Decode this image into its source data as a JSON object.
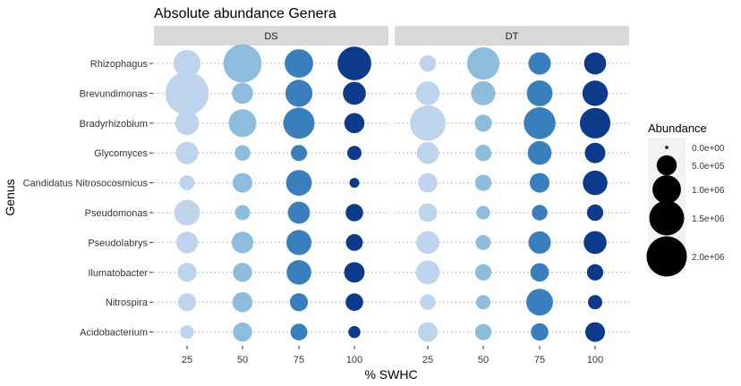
{
  "chart_data": {
    "type": "scatter",
    "title": "Absolute abundance Genera",
    "xlabel": "% SWHC",
    "ylabel": "Genus",
    "x_ticks": [
      25,
      50,
      75,
      100
    ],
    "facets": [
      "DS",
      "DT"
    ],
    "genera": [
      "Rhizophagus",
      "Brevundimonas",
      "Bradyrhizobium",
      "Glycomyces",
      "Candidatus Nitrosocosmicus",
      "Pseudomonas",
      "Pseudolabrys",
      "Ilumatobacter",
      "Nitrospira",
      "Acidobacterium"
    ],
    "grid": "dotted horizontal",
    "legend": {
      "title": "Abundance",
      "position": "right",
      "entries": [
        "0.0e+00",
        "5.0e+05",
        "1.0e+06",
        "1.5e+06",
        "2.0e+06"
      ],
      "values": [
        0,
        500000,
        1000000,
        1500000,
        2000000
      ]
    },
    "color_scale": {
      "25": "#bdd4ec",
      "50": "#8dbcdc",
      "75": "#3a7fbd",
      "100": "#0d3a8a"
    },
    "series": [
      {
        "facet": "DS",
        "points": [
          {
            "genus": "Rhizophagus",
            "abundance": [
              900000,
              1800000,
              1000000,
              1400000
            ]
          },
          {
            "genus": "Brevundimonas",
            "abundance": [
              2300000,
              550000,
              900000,
              650000
            ]
          },
          {
            "genus": "Bradyrhizobium",
            "abundance": [
              700000,
              950000,
              1200000,
              500000
            ]
          },
          {
            "genus": "Glycomyces",
            "abundance": [
              620000,
              300000,
              320000,
              250000
            ]
          },
          {
            "genus": "Candidatus Nitrosocosmicus",
            "abundance": [
              280000,
              480000,
              820000,
              120000
            ]
          },
          {
            "genus": "Pseudomonas",
            "abundance": [
              820000,
              280000,
              600000,
              380000
            ]
          },
          {
            "genus": "Pseudolabrys",
            "abundance": [
              580000,
              580000,
              780000,
              350000
            ]
          },
          {
            "genus": "Ilumatobacter",
            "abundance": [
              450000,
              450000,
              750000,
              520000
            ]
          },
          {
            "genus": "Nitrospira",
            "abundance": [
              400000,
              500000,
              400000,
              380000
            ]
          },
          {
            "genus": "Acidobacterium",
            "abundance": [
              230000,
              450000,
              350000,
              180000
            ]
          }
        ]
      },
      {
        "facet": "DT",
        "points": [
          {
            "genus": "Rhizophagus",
            "abundance": [
              330000,
              1300000,
              620000,
              600000
            ]
          },
          {
            "genus": "Brevundimonas",
            "abundance": [
              700000,
              720000,
              820000,
              800000
            ]
          },
          {
            "genus": "Bradyrhizobium",
            "abundance": [
              1550000,
              360000,
              1250000,
              1150000
            ]
          },
          {
            "genus": "Glycomyces",
            "abundance": [
              600000,
              330000,
              700000,
              520000
            ]
          },
          {
            "genus": "Candidatus Nitrosocosmicus",
            "abundance": [
              460000,
              330000,
              480000,
              750000
            ]
          },
          {
            "genus": "Pseudomonas",
            "abundance": [
              430000,
              230000,
              300000,
              330000
            ]
          },
          {
            "genus": "Pseudolabrys",
            "abundance": [
              650000,
              280000,
              620000,
              650000
            ]
          },
          {
            "genus": "Ilumatobacter",
            "abundance": [
              700000,
              330000,
              420000,
              330000
            ]
          },
          {
            "genus": "Nitrospira",
            "abundance": [
              300000,
              250000,
              880000,
              250000
            ]
          },
          {
            "genus": "Acidobacterium",
            "abundance": [
              480000,
              330000,
              380000,
              480000
            ]
          }
        ]
      }
    ]
  }
}
